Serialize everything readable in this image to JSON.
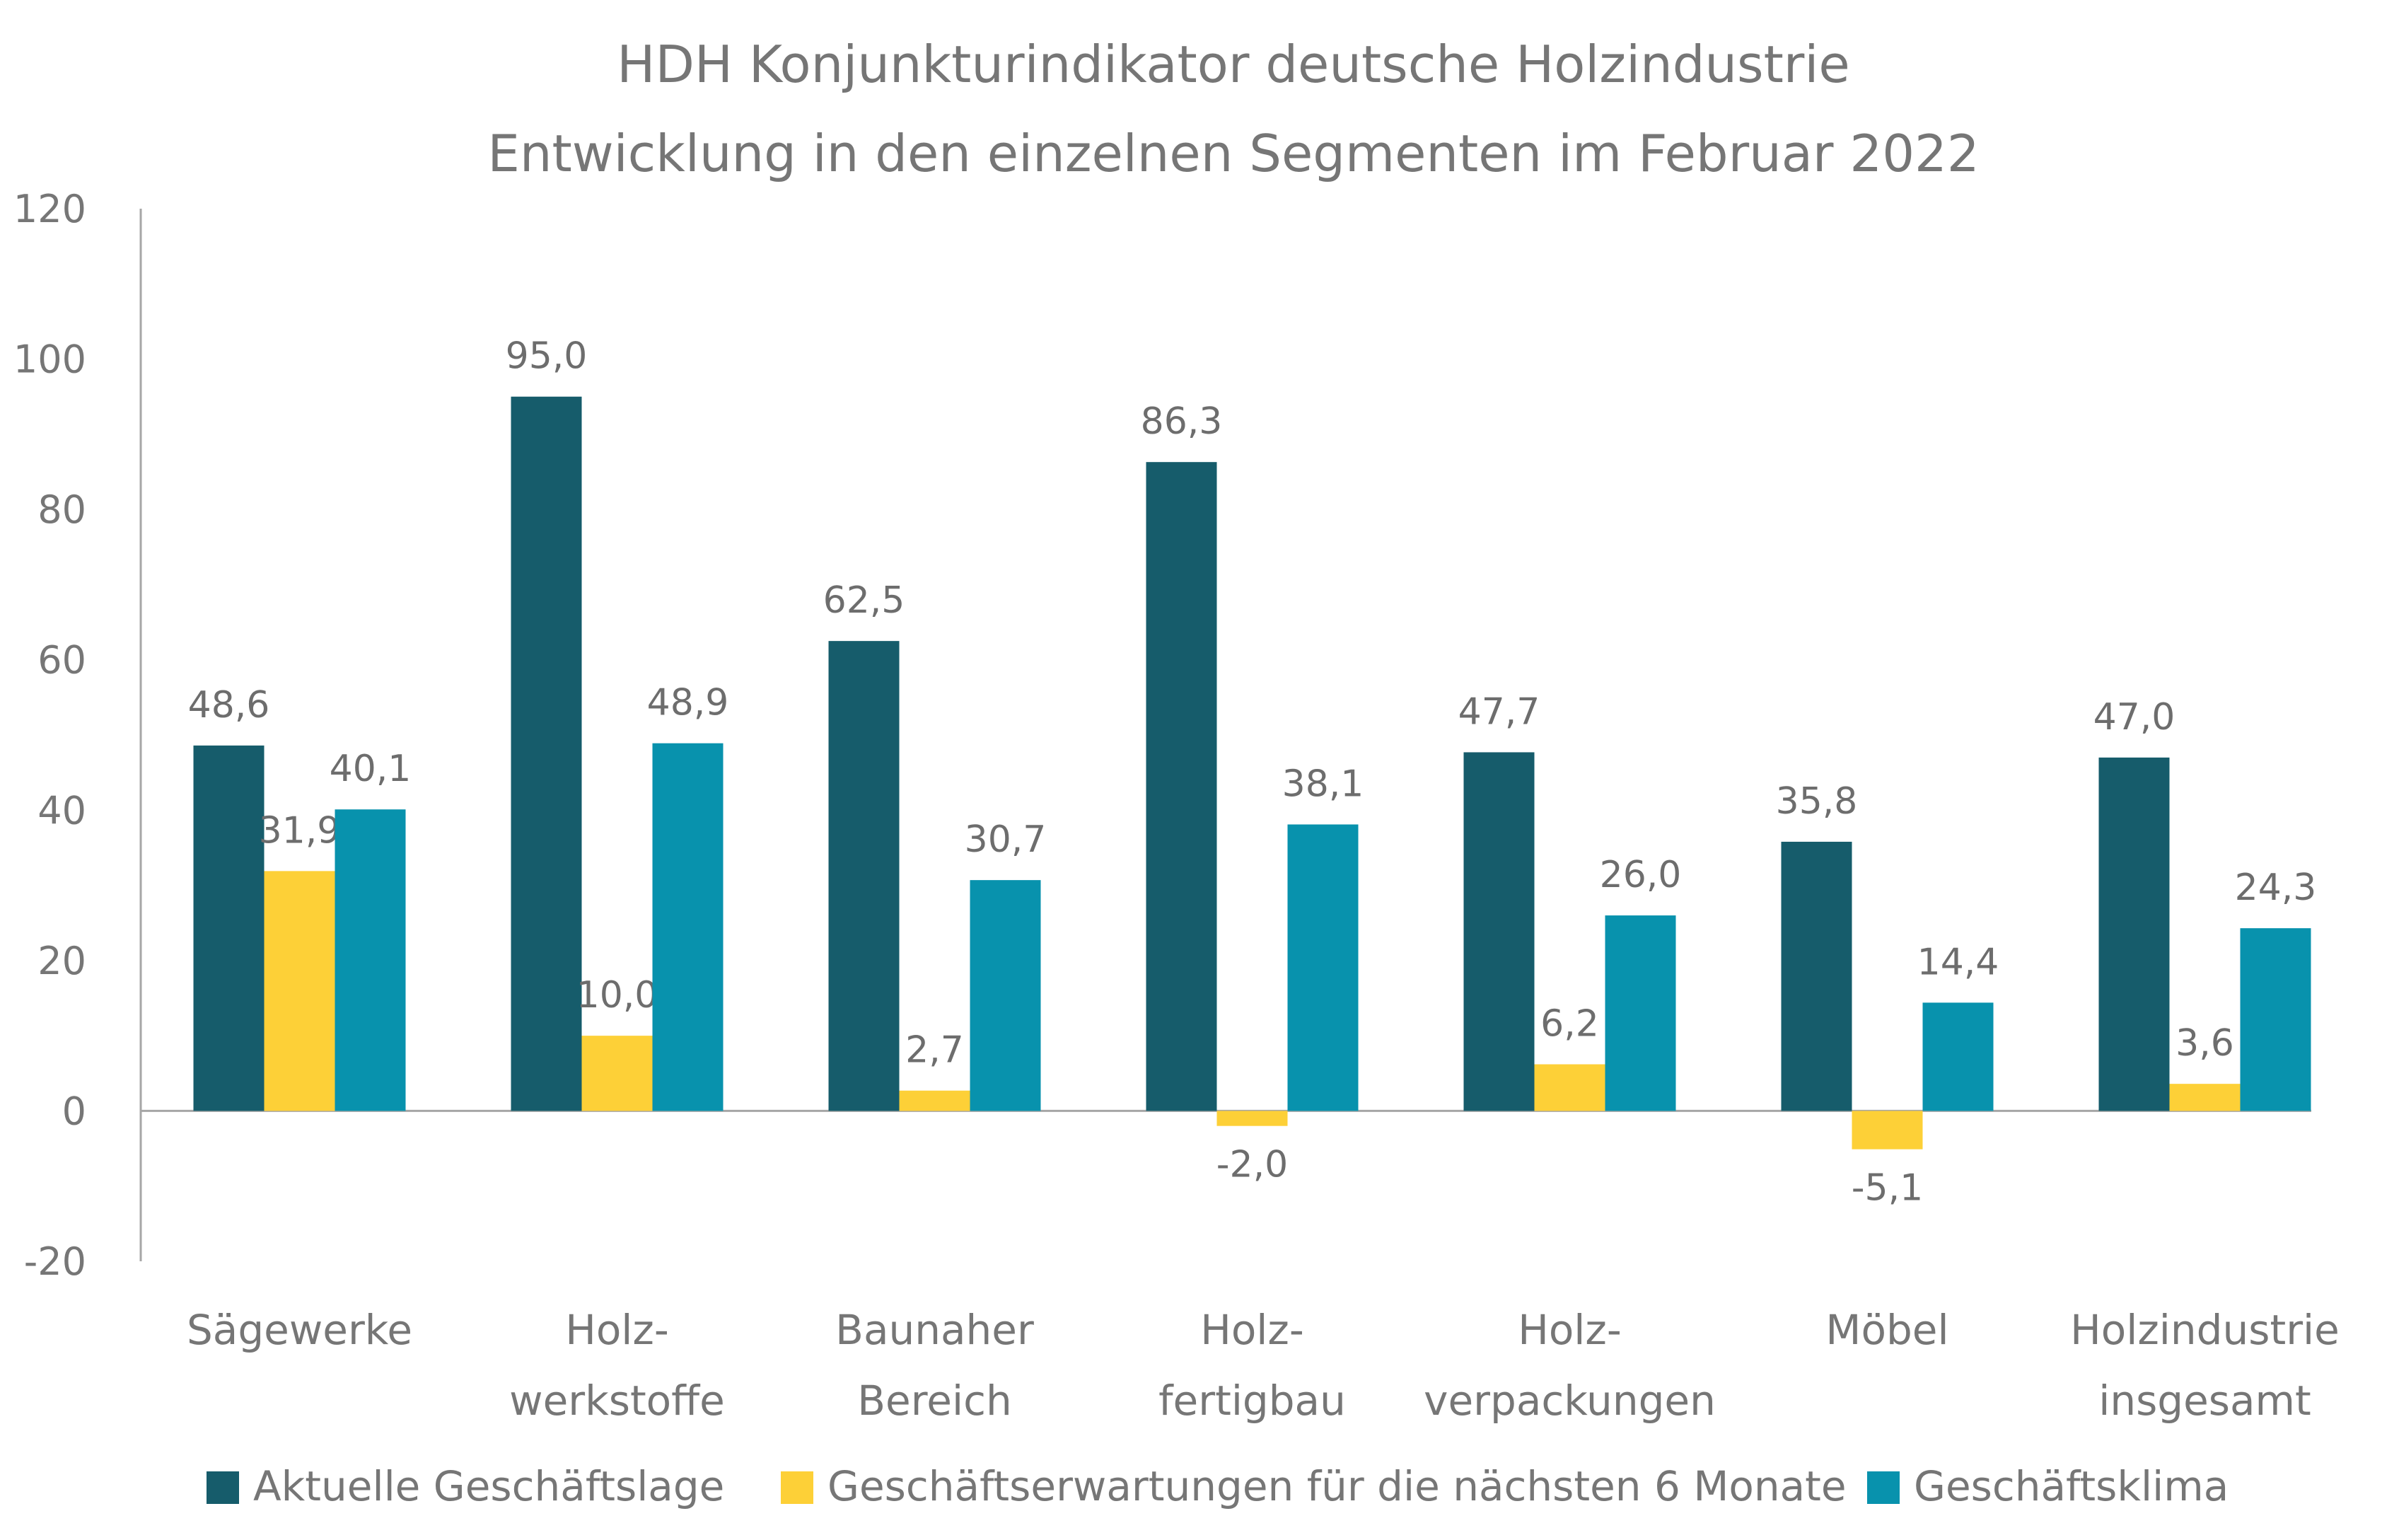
{
  "chart_data": {
    "type": "bar",
    "title": "HDH Konjunkturindikator deutsche Holzindustrie",
    "subtitle": "Entwicklung in den einzelnen Segmenten im Februar 2022",
    "categories": [
      [
        "Sägewerke"
      ],
      [
        "Holz-",
        "werkstoffe"
      ],
      [
        "Baunaher",
        "Bereich"
      ],
      [
        "Holz-",
        "fertigbau"
      ],
      [
        "Holz-",
        "verpackungen"
      ],
      [
        "Möbel"
      ],
      [
        "Holzindustrie",
        "insgesamt"
      ]
    ],
    "series": [
      {
        "name": "Aktuelle Geschäftslage",
        "color": "#165c6b",
        "values": [
          48.6,
          95.0,
          62.5,
          86.3,
          47.7,
          35.8,
          47.0
        ]
      },
      {
        "name": "Geschäftserwartungen für die nächsten 6 Monate",
        "color": "#fdd037",
        "values": [
          31.9,
          10.0,
          2.7,
          -2.0,
          6.2,
          -5.1,
          3.6
        ]
      },
      {
        "name": "Geschäftsklima",
        "color": "#0892ad",
        "values": [
          40.1,
          48.9,
          30.7,
          38.1,
          26.0,
          14.4,
          24.3
        ]
      }
    ],
    "value_format": "one decimal, comma separator",
    "y_ticks": [
      "120",
      "100",
      "80",
      "60",
      "40",
      "20",
      "0",
      "-20"
    ],
    "ylim": [
      -20,
      120
    ],
    "xlabel": "",
    "ylabel": "",
    "grid": false,
    "legend_position": "bottom"
  },
  "colors": {
    "text": "#767676",
    "axis": "#a6a6a6"
  }
}
